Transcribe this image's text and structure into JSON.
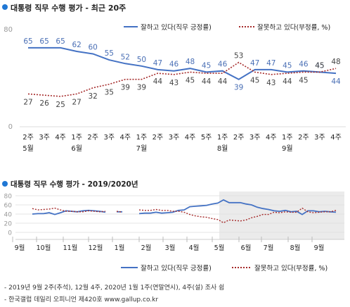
{
  "chart_data": [
    {
      "type": "line",
      "title": "대통령 직무 수행 평가 - 최근 20주",
      "ylim": [
        0,
        80
      ],
      "yticks": [
        0,
        80
      ],
      "week_labels": [
        "2주",
        "3주",
        "4주",
        "1주",
        "2주",
        "3주",
        "4주",
        "1주",
        "2주",
        "3주",
        "4주",
        "5주",
        "1주",
        "2주",
        "3주",
        "4주",
        "1주",
        "2주",
        "3주",
        "4주"
      ],
      "month_labels": [
        {
          "at": 0,
          "text": "5월"
        },
        {
          "at": 3,
          "text": "6월"
        },
        {
          "at": 7,
          "text": "7월"
        },
        {
          "at": 12,
          "text": "8월"
        },
        {
          "at": 16,
          "text": "9월"
        }
      ],
      "series": [
        {
          "name": "잘하고 있다(직무 긍정률)",
          "color": "#4472c4",
          "style": "solid",
          "values": [
            65,
            65,
            65,
            62,
            60,
            55,
            52,
            50,
            47,
            46,
            48,
            45,
            46,
            39,
            47,
            47,
            45,
            46,
            45,
            44
          ]
        },
        {
          "name": "잘못하고 있다(부정률, %)",
          "color": "#a52a2a",
          "style": "dotted",
          "values": [
            27,
            26,
            25,
            27,
            32,
            35,
            39,
            39,
            44,
            43,
            45,
            44,
            44,
            53,
            45,
            43,
            44,
            45,
            45,
            48
          ]
        }
      ]
    },
    {
      "type": "line",
      "title": "대통령 직무 수행 평가 - 2019/2020년",
      "ylim": [
        0,
        80
      ],
      "yticks": [
        0,
        20,
        40,
        60,
        80
      ],
      "months": [
        "9월",
        "10월",
        "11월",
        "12월",
        "1월",
        "2월",
        "3월",
        "4월",
        "5월",
        "6월",
        "7월",
        "8월",
        "9월"
      ],
      "shaded_from_month": "5월",
      "series": [
        {
          "name": "잘하고 있다(직무 긍정률)",
          "color": "#4472c4",
          "style": "solid",
          "values": [
            40,
            41,
            41,
            43,
            39,
            43,
            47,
            46,
            45,
            47,
            48,
            47,
            46,
            44,
            null,
            45,
            45,
            null,
            null,
            41,
            42,
            42,
            44,
            42,
            43,
            44,
            48,
            49,
            56,
            57,
            58,
            59,
            62,
            64,
            71,
            65,
            65,
            65,
            62,
            60,
            55,
            52,
            50,
            47,
            46,
            48,
            45,
            46,
            39,
            47,
            47,
            45,
            46,
            45,
            44
          ]
        },
        {
          "name": "잘못하고 있다(부정률, %)",
          "color": "#a52a2a",
          "style": "dotted",
          "values": [
            52,
            49,
            50,
            51,
            53,
            49,
            46,
            46,
            45,
            45,
            47,
            46,
            45,
            46,
            null,
            46,
            44,
            null,
            null,
            49,
            48,
            48,
            50,
            48,
            48,
            46,
            46,
            44,
            39,
            36,
            34,
            33,
            30,
            28,
            21,
            27,
            26,
            25,
            27,
            32,
            35,
            39,
            39,
            44,
            43,
            45,
            44,
            44,
            53,
            45,
            43,
            44,
            45,
            45,
            48
          ]
        }
      ]
    }
  ],
  "notes": [
    "- 2019년 9월 2주(추석), 12월 4주, 2020년 1월 1주(연말연시), 4주(설) 조사 쉼",
    "- 한국갤럽 데일리 오피니언 제420호 www.gallup.co.kr"
  ],
  "colors": {
    "bullet": "#1f77d4",
    "positive": "#4472c4",
    "negative": "#a52a2a",
    "shade": "#ebebeb",
    "grid": "#dddddd"
  }
}
